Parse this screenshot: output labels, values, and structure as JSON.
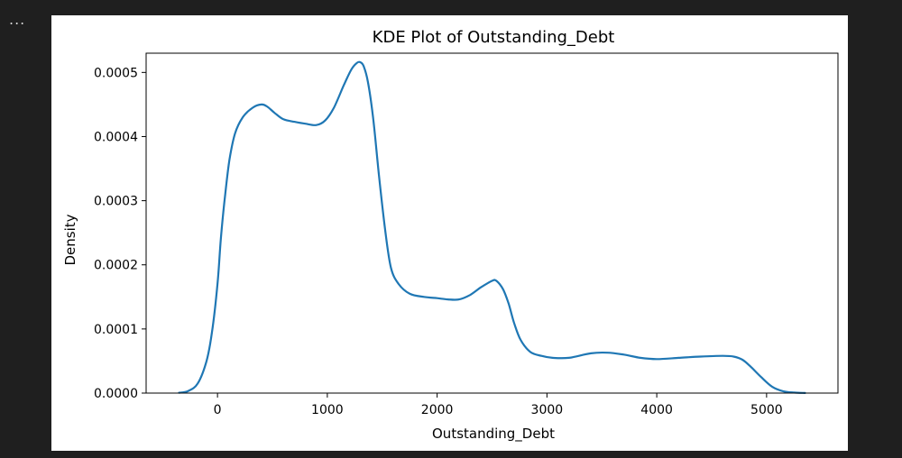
{
  "output": {
    "more_label": "..."
  },
  "chart_data": {
    "type": "line",
    "title": "KDE Plot of Outstanding_Debt",
    "xlabel": "Outstanding_Debt",
    "ylabel": "Density",
    "xlim": [
      -650,
      5650
    ],
    "ylim": [
      0,
      0.00053
    ],
    "xticks": [
      0,
      1000,
      2000,
      3000,
      4000,
      5000
    ],
    "yticks": [
      0,
      0.0001,
      0.0002,
      0.0003,
      0.0004,
      0.0005
    ],
    "ytick_labels": [
      "0.0000",
      "0.0001",
      "0.0002",
      "0.0003",
      "0.0004",
      "0.0005"
    ],
    "grid": false,
    "legend": "none",
    "line_color": "#1f77b4",
    "series": [
      {
        "x": [
          -350,
          -270,
          -180,
          -100,
          -50,
          0,
          30,
          70,
          110,
          160,
          230,
          320,
          400,
          450,
          520,
          600,
          700,
          800,
          900,
          980,
          1060,
          1150,
          1220,
          1270,
          1300,
          1330,
          1370,
          1420,
          1470,
          1530,
          1580,
          1650,
          1750,
          1880,
          2000,
          2100,
          2200,
          2300,
          2400,
          2500,
          2540,
          2600,
          2650,
          2700,
          2760,
          2850,
          2950,
          3050,
          3200,
          3400,
          3550,
          3700,
          3850,
          4000,
          4200,
          4400,
          4600,
          4700,
          4780,
          4850,
          4950,
          5050,
          5150,
          5250,
          5350
        ],
        "y": [
          5e-07,
          3e-06,
          1.5e-05,
          5e-05,
          9.5e-05,
          0.00017,
          0.00024,
          0.00031,
          0.000365,
          0.000405,
          0.00043,
          0.000445,
          0.00045,
          0.000447,
          0.000437,
          0.000427,
          0.000423,
          0.00042,
          0.000418,
          0.000425,
          0.000445,
          0.00048,
          0.000505,
          0.000515,
          0.000516,
          0.00051,
          0.000485,
          0.000425,
          0.00034,
          0.00025,
          0.000195,
          0.00017,
          0.000155,
          0.00015,
          0.000148,
          0.000146,
          0.000146,
          0.000153,
          0.000165,
          0.000175,
          0.000175,
          0.000162,
          0.00014,
          0.00011,
          8.3e-05,
          6.4e-05,
          5.8e-05,
          5.5e-05,
          5.5e-05,
          6.2e-05,
          6.3e-05,
          6e-05,
          5.5e-05,
          5.3e-05,
          5.5e-05,
          5.7e-05,
          5.8e-05,
          5.7e-05,
          5.2e-05,
          4.2e-05,
          2.5e-05,
          1e-05,
          3e-06,
          8e-07,
          1e-07
        ]
      }
    ]
  }
}
